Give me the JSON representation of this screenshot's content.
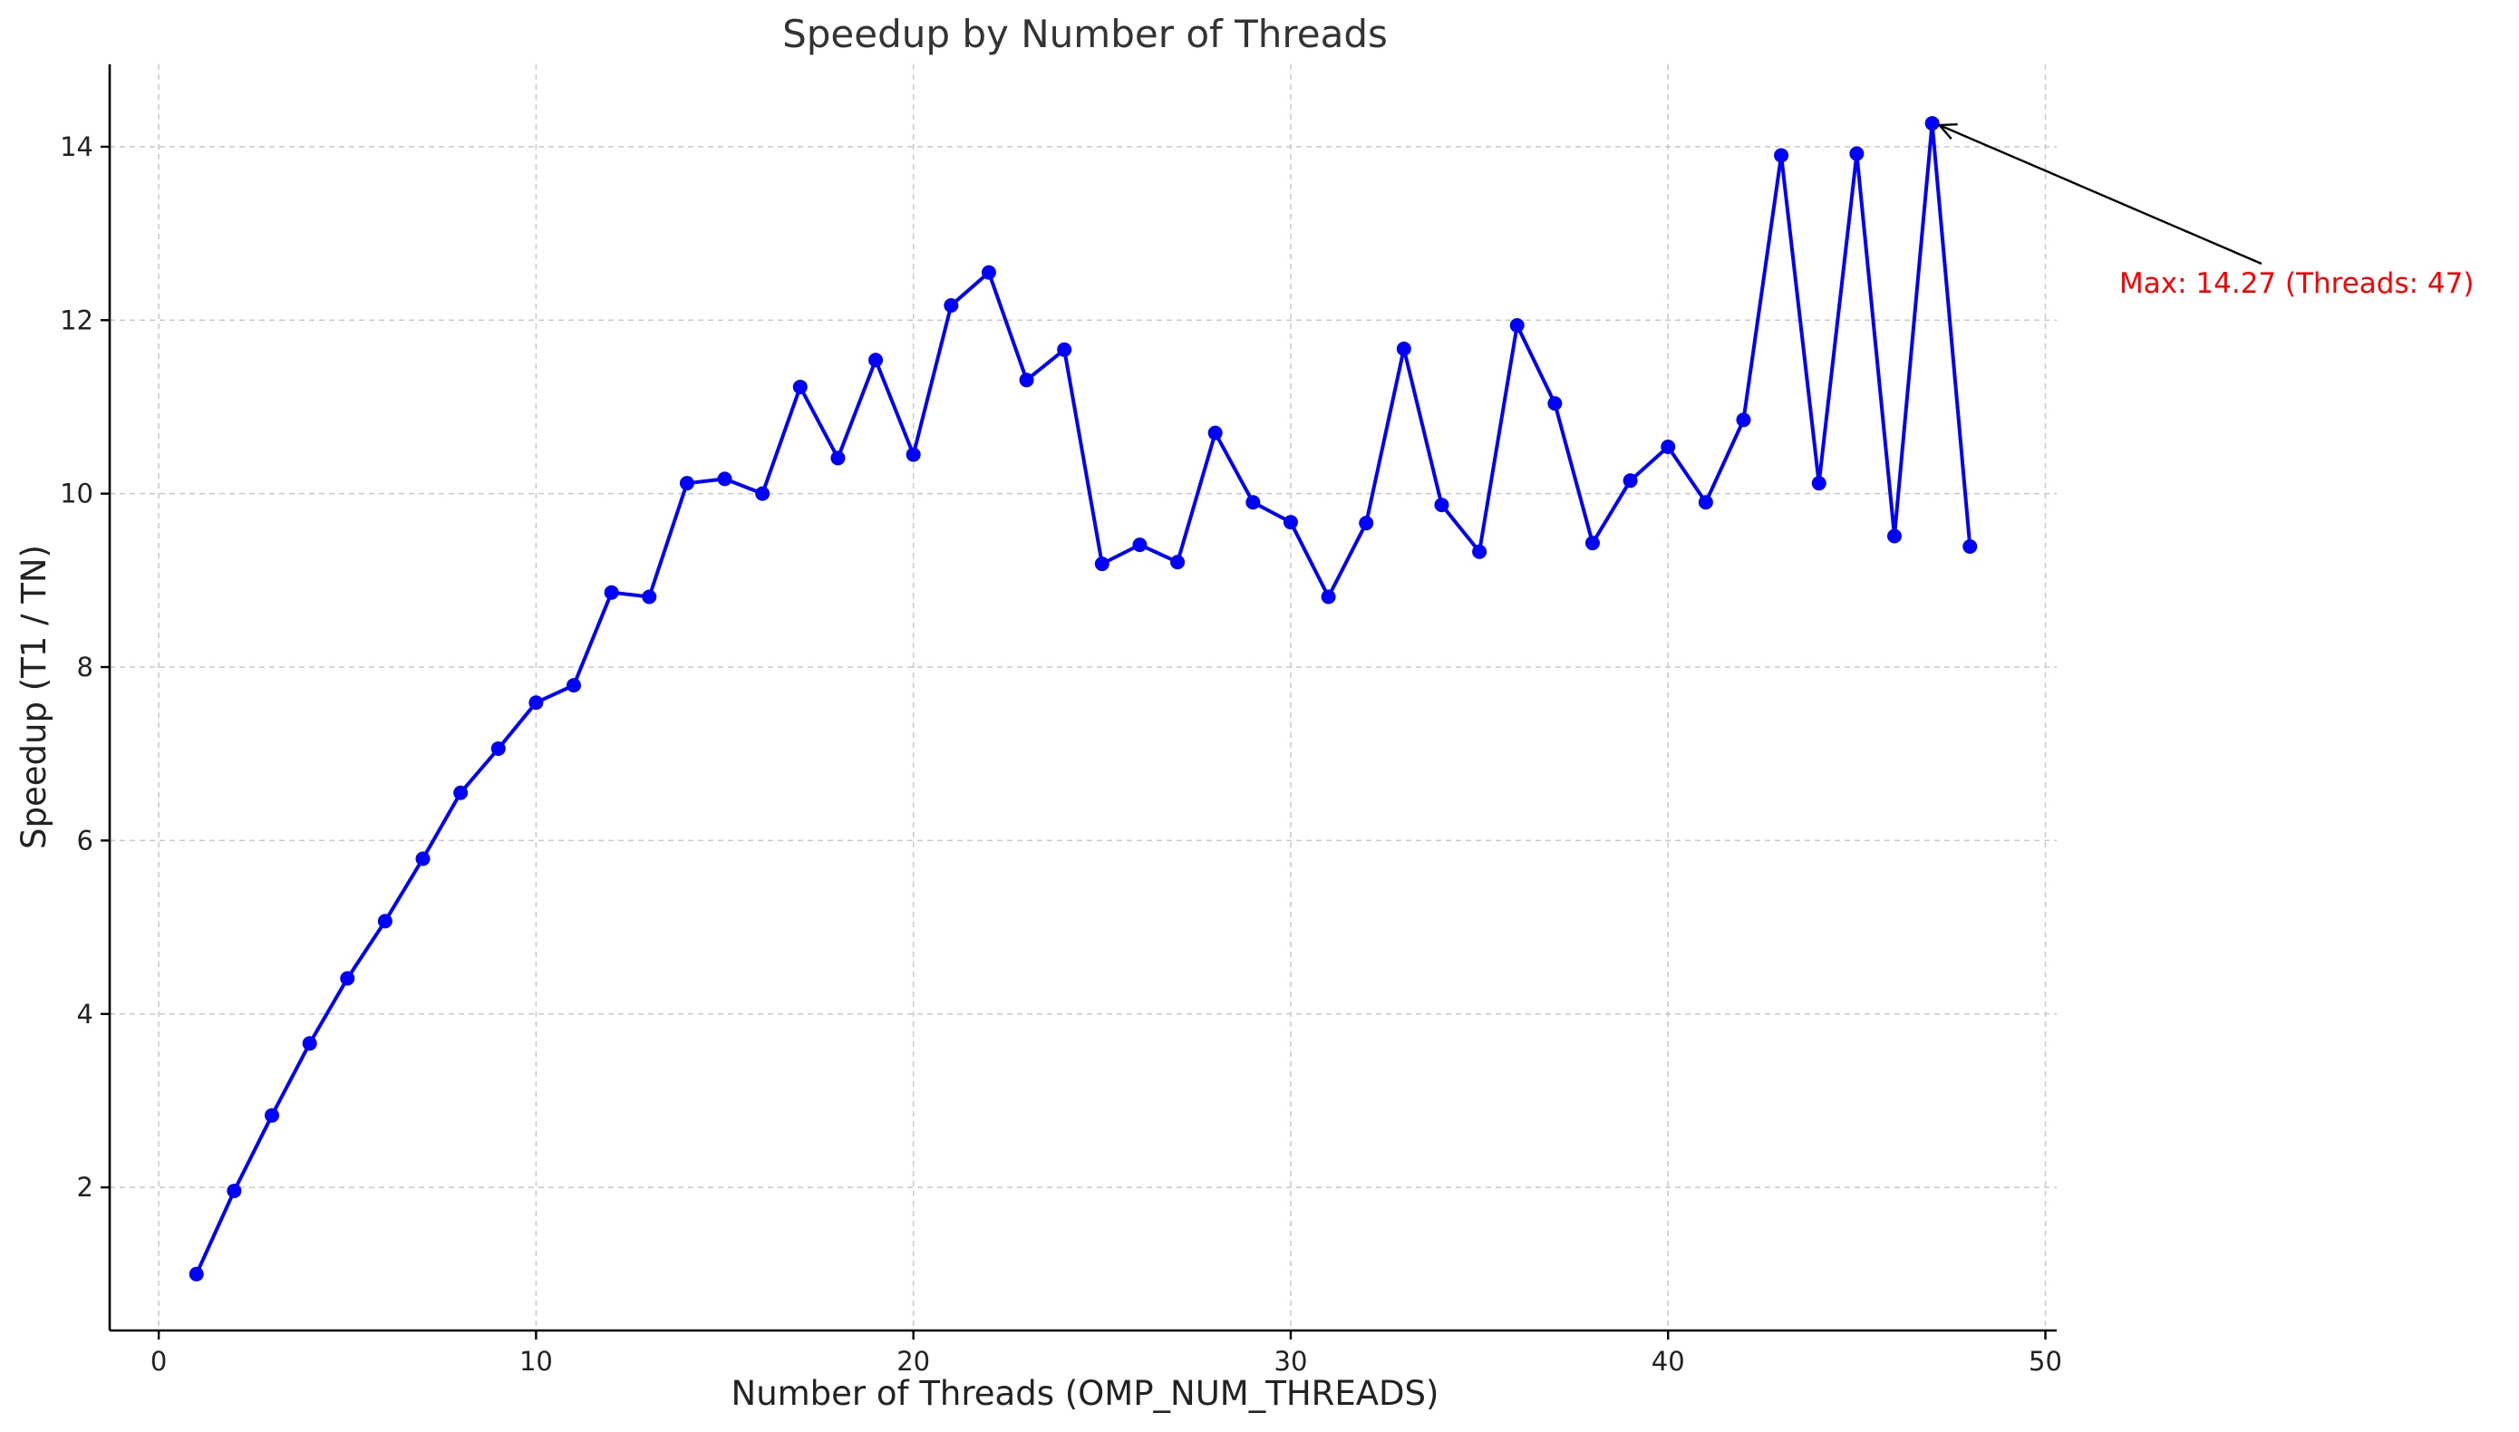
{
  "chart_data": {
    "type": "line",
    "title": "Speedup by Number of Threads",
    "xlabel": "Number of Threads (OMP_NUM_THREADS)",
    "ylabel": "Speedup (T1 / TN)",
    "xlim": [
      -1.3,
      50.3
    ],
    "ylim": [
      0.35,
      14.95
    ],
    "xticks": [
      0,
      10,
      20,
      30,
      40,
      50
    ],
    "yticks": [
      2,
      4,
      6,
      8,
      10,
      12,
      14
    ],
    "grid": true,
    "series": [
      {
        "color": "#0000ff",
        "marker": "circle",
        "x": [
          1,
          2,
          3,
          4,
          5,
          6,
          7,
          8,
          9,
          10,
          11,
          12,
          13,
          14,
          15,
          16,
          17,
          18,
          19,
          20,
          21,
          22,
          23,
          24,
          25,
          26,
          27,
          28,
          29,
          30,
          31,
          32,
          33,
          34,
          35,
          36,
          37,
          38,
          39,
          40,
          41,
          42,
          43,
          44,
          45,
          46,
          47,
          48
        ],
        "y": [
          1.0,
          1.96,
          2.83,
          3.66,
          4.41,
          5.07,
          5.79,
          6.55,
          7.06,
          7.59,
          7.79,
          8.86,
          8.81,
          10.12,
          10.17,
          10.0,
          11.23,
          10.41,
          11.54,
          10.45,
          12.17,
          12.55,
          11.31,
          11.66,
          9.19,
          9.41,
          9.21,
          10.7,
          9.9,
          9.67,
          8.81,
          9.66,
          11.67,
          9.87,
          9.33,
          11.94,
          11.04,
          9.43,
          10.15,
          10.54,
          9.9,
          10.85,
          13.9,
          10.12,
          13.92,
          9.51,
          14.27,
          9.39
        ]
      }
    ],
    "annotations": [
      {
        "text": "Max: 14.27 (Threads: 47)",
        "x": 47,
        "y": 14.27,
        "color": "#ff0000",
        "arrow": true
      }
    ]
  }
}
